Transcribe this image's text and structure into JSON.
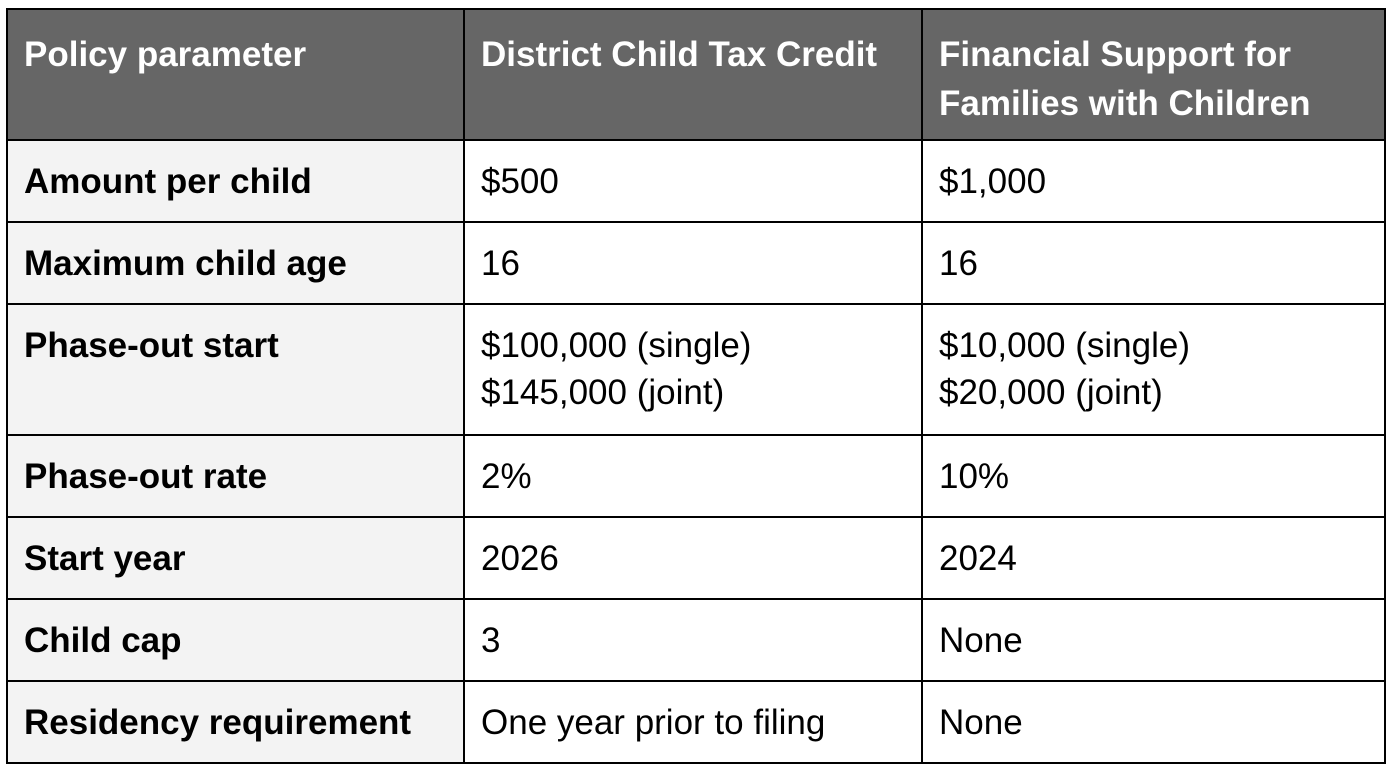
{
  "table": {
    "headers": [
      "Policy parameter",
      "District Child Tax Credit",
      "Financial Support for Families with Children"
    ],
    "rows": [
      {
        "parameter": "Amount per child",
        "dctc": [
          "$500"
        ],
        "fsfc": [
          "$1,000"
        ]
      },
      {
        "parameter": "Maximum child age",
        "dctc": [
          "16"
        ],
        "fsfc": [
          "16"
        ]
      },
      {
        "parameter": "Phase-out start",
        "dctc": [
          "$100,000 (single)",
          "$145,000 (joint)"
        ],
        "fsfc": [
          "$10,000 (single)",
          "$20,000 (joint)"
        ]
      },
      {
        "parameter": "Phase-out rate",
        "dctc": [
          "2%"
        ],
        "fsfc": [
          "10%"
        ]
      },
      {
        "parameter": "Start year",
        "dctc": [
          "2026"
        ],
        "fsfc": [
          "2024"
        ]
      },
      {
        "parameter": "Child cap",
        "dctc": [
          "3"
        ],
        "fsfc": [
          "None"
        ]
      },
      {
        "parameter": "Residency requirement",
        "dctc": [
          "One year prior to filing"
        ],
        "fsfc": [
          "None"
        ]
      }
    ]
  },
  "colors": {
    "header_bg": "#666666",
    "header_text": "#ffffff",
    "row_label_bg": "#f3f3f3",
    "cell_bg": "#ffffff",
    "border": "#000000"
  }
}
